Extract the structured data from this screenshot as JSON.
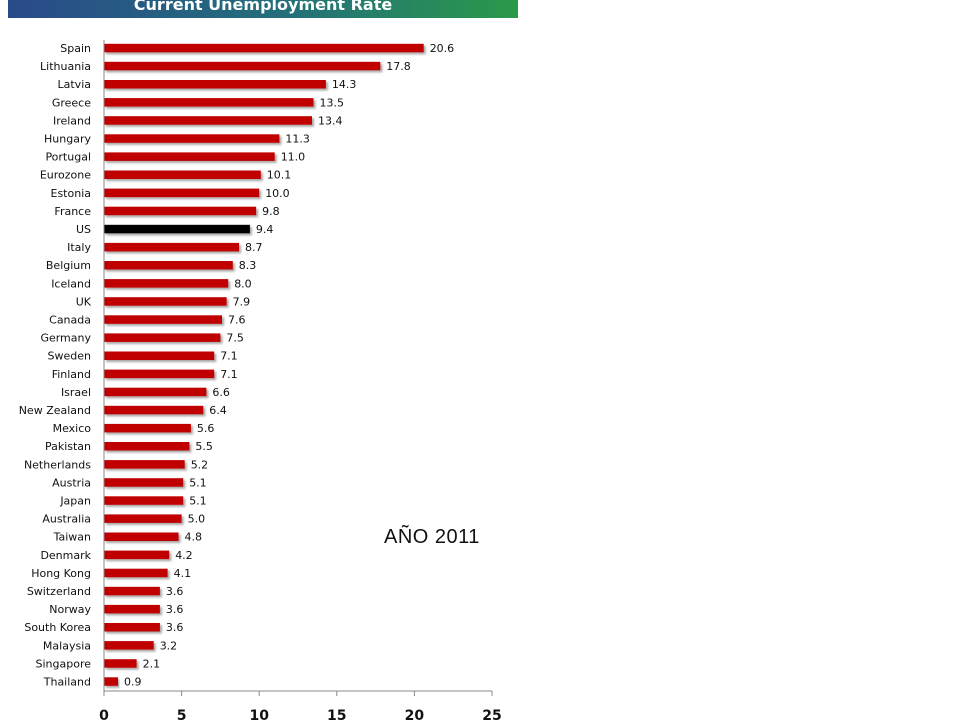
{
  "chart_data": {
    "type": "bar",
    "orientation": "horizontal",
    "title": "Current Unemployment Rate",
    "annotation": "AÑO 2011",
    "categories": [
      "Spain",
      "Lithuania",
      "Latvia",
      "Greece",
      "Ireland",
      "Hungary",
      "Portugal",
      "Eurozone",
      "Estonia",
      "France",
      "US",
      "Italy",
      "Belgium",
      "Iceland",
      "UK",
      "Canada",
      "Germany",
      "Sweden",
      "Finland",
      "Israel",
      "New Zealand",
      "Mexico",
      "Pakistan",
      "Netherlands",
      "Austria",
      "Japan",
      "Australia",
      "Taiwan",
      "Denmark",
      "Hong Kong",
      "Switzerland",
      "Norway",
      "South Korea",
      "Malaysia",
      "Singapore",
      "Thailand"
    ],
    "values": [
      20.6,
      17.8,
      14.3,
      13.5,
      13.4,
      11.3,
      11.0,
      10.1,
      10.0,
      9.8,
      9.4,
      8.7,
      8.3,
      8.0,
      7.9,
      7.6,
      7.5,
      7.1,
      7.1,
      6.6,
      6.4,
      5.6,
      5.5,
      5.2,
      5.1,
      5.1,
      5.0,
      4.8,
      4.2,
      4.1,
      3.6,
      3.6,
      3.6,
      3.2,
      2.1,
      0.9
    ],
    "value_labels": [
      "20.6",
      "17.8",
      "14.3",
      "13.5",
      "13.4",
      "11.3",
      "11.0",
      "10.1",
      "10.0",
      "9.8",
      "9.4",
      "8.7",
      "8.3",
      "8.0",
      "7.9",
      "7.6",
      "7.5",
      "7.1",
      "7.1",
      "6.6",
      "6.4",
      "5.6",
      "5.5",
      "5.2",
      "5.1",
      "5.1",
      "5.0",
      "4.8",
      "4.2",
      "4.1",
      "3.6",
      "3.6",
      "3.6",
      "3.2",
      "2.1",
      "0.9"
    ],
    "highlight_category": "US",
    "xlim": [
      0,
      25
    ],
    "xticks": [
      "0",
      "5",
      "10",
      "15",
      "20",
      "25"
    ],
    "xtick_values": [
      0,
      5,
      10,
      15,
      20,
      25
    ],
    "grid": false,
    "legend": "none",
    "colors": {
      "bar": "#c00000",
      "highlight_bar": "#000000",
      "title_banner_left": "#2a4a8a",
      "title_banner_right": "#2a9a4a",
      "title_text": "#ffffff"
    }
  }
}
